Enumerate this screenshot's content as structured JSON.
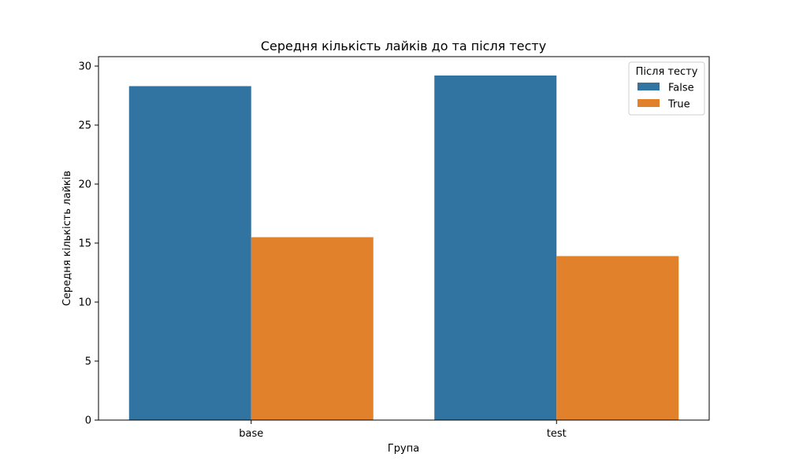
{
  "chart_data": {
    "type": "bar",
    "title": "Середня кількість лайків до та після тесту",
    "xlabel": "Група",
    "ylabel": "Середня кількість лайків",
    "categories": [
      "base",
      "test"
    ],
    "series": [
      {
        "name": "False",
        "color": "#3274a1",
        "values": [
          28.3,
          29.2
        ]
      },
      {
        "name": "True",
        "color": "#e1812c",
        "values": [
          15.5,
          13.9
        ]
      }
    ],
    "ylim": [
      0,
      30.8
    ],
    "yticks": [
      0,
      5,
      10,
      15,
      20,
      25,
      30
    ],
    "legend": {
      "title": "Після тесту",
      "placement": "top-right"
    },
    "grid": false
  }
}
